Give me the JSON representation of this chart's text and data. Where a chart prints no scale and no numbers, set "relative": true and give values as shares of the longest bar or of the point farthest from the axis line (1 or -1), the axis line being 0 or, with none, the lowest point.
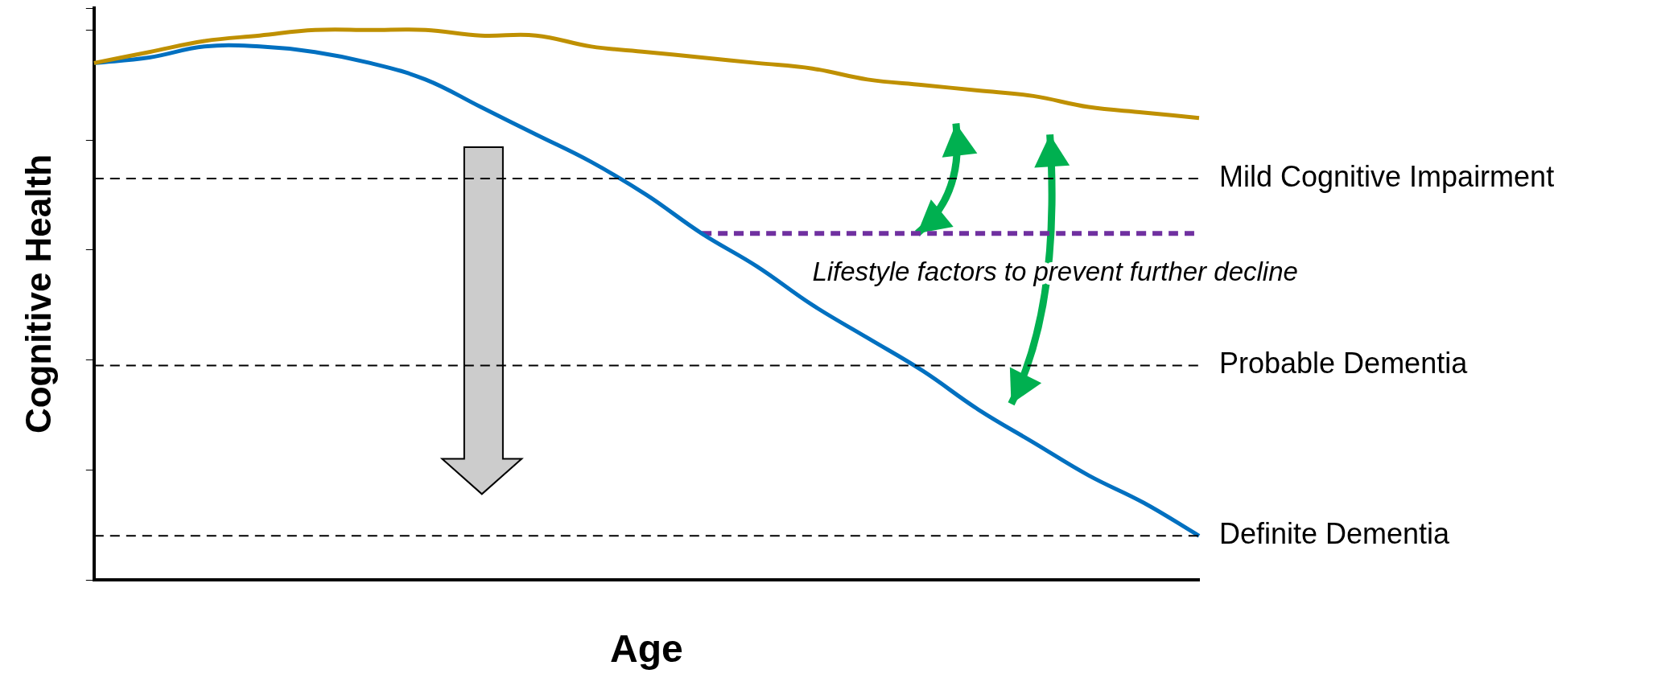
{
  "chart_data": {
    "type": "line",
    "relative": true,
    "xlabel": "Age",
    "ylabel": "Cognitive Health",
    "legend": false,
    "grid": false,
    "marker": "none",
    "categories": [
      null,
      null,
      null,
      null,
      null,
      null,
      null,
      null,
      null,
      null,
      null,
      null,
      null,
      null,
      null,
      null,
      null,
      null,
      null,
      null,
      null
    ],
    "series": [
      {
        "color": "#bf9000",
        "values": [
          0.94,
          0.96,
          0.98,
          0.99,
          1.0,
          1.0,
          1.0,
          0.99,
          0.99,
          0.97,
          0.96,
          0.95,
          0.94,
          0.93,
          0.91,
          0.9,
          0.89,
          0.88,
          0.86,
          0.85,
          0.84
        ]
      },
      {
        "color": "#0070c0",
        "values": [
          0.94,
          0.95,
          0.97,
          0.97,
          0.96,
          0.94,
          0.91,
          0.86,
          0.81,
          0.76,
          0.7,
          0.63,
          0.57,
          0.5,
          0.44,
          0.38,
          0.31,
          0.25,
          0.19,
          0.14,
          0.08
        ]
      },
      {
        "color": "#7030a0",
        "line_style": "dashed",
        "values": [
          null,
          null,
          null,
          null,
          null,
          null,
          null,
          null,
          null,
          null,
          null,
          0.63,
          0.63,
          0.63,
          0.63,
          0.63,
          0.63,
          0.63,
          0.63,
          0.63,
          0.63
        ]
      }
    ],
    "ref_lines": [
      {
        "axis": "y",
        "value": 0.73,
        "label": "Mild Cognitive Impairment",
        "line_style": "dashed",
        "color": "#000000"
      },
      {
        "axis": "y",
        "value": 0.39,
        "label": "Probable Dementia",
        "line_style": "dashed",
        "color": "#000000"
      },
      {
        "axis": "y",
        "value": 0.08,
        "label": "Definite Dementia",
        "line_style": "dashed",
        "color": "#000000"
      }
    ],
    "annotations": [
      "Lifestyle factors to prevent further decline"
    ]
  }
}
